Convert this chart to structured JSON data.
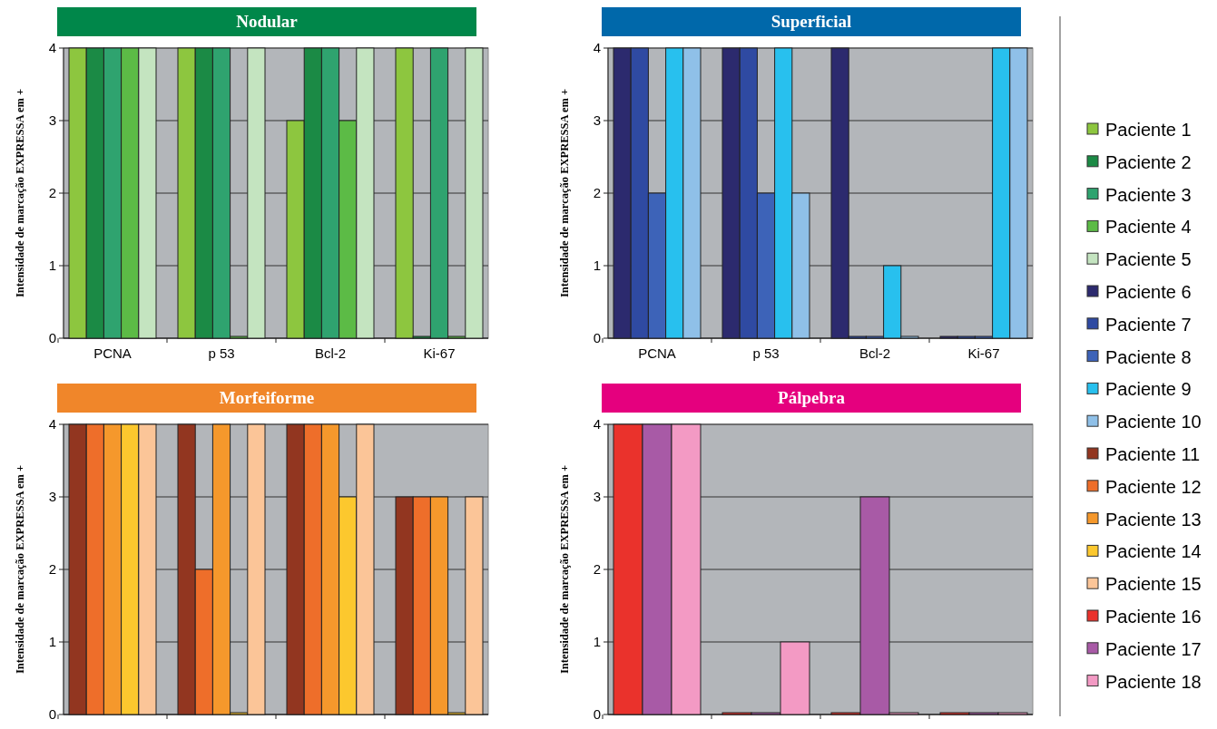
{
  "chart_data": [
    {
      "type": "bar",
      "title": "Nodular",
      "ylabel": "Intensidade de marcação EXPRESSA em +",
      "categories": [
        "PCNA",
        "p 53",
        "Bcl-2",
        "Ki-67"
      ],
      "ylim": [
        0,
        4
      ],
      "yticks": [
        0,
        1,
        2,
        3,
        4
      ],
      "grid": "y",
      "legend": "right",
      "series": [
        {
          "name": "Paciente 1",
          "color": "#8dc63f",
          "values": [
            4,
            4,
            3,
            4
          ]
        },
        {
          "name": "Paciente 2",
          "color": "#1b8a45",
          "values": [
            4,
            4,
            4,
            0
          ]
        },
        {
          "name": "Paciente 3",
          "color": "#2fa36f",
          "values": [
            4,
            4,
            4,
            4
          ]
        },
        {
          "name": "Paciente 4",
          "color": "#5cbb46",
          "values": [
            4,
            0,
            3,
            0
          ]
        },
        {
          "name": "Paciente 5",
          "color": "#c4e4c0",
          "values": [
            4,
            4,
            4,
            4
          ]
        }
      ]
    },
    {
      "type": "bar",
      "title": "Superficial",
      "ylabel": "Intensidade de marcação EXPRESSA em +",
      "categories": [
        "PCNA",
        "p 53",
        "Bcl-2",
        "Ki-67"
      ],
      "ylim": [
        0,
        4
      ],
      "yticks": [
        0,
        1,
        2,
        3,
        4
      ],
      "grid": "y",
      "legend": "right",
      "series": [
        {
          "name": "Paciente 6",
          "color": "#2c2a6e",
          "values": [
            4,
            4,
            4,
            0
          ]
        },
        {
          "name": "Paciente 7",
          "color": "#2f4aa2",
          "values": [
            4,
            4,
            0,
            0
          ]
        },
        {
          "name": "Paciente 8",
          "color": "#3d63b8",
          "values": [
            2,
            2,
            0,
            0
          ]
        },
        {
          "name": "Paciente 9",
          "color": "#28c0ee",
          "values": [
            4,
            4,
            1,
            4
          ]
        },
        {
          "name": "Paciente 10",
          "color": "#8fc0e8",
          "values": [
            4,
            2,
            0,
            4
          ]
        }
      ]
    },
    {
      "type": "bar",
      "title": "Morfeiforme",
      "ylabel": "Intensidade de marcação EXPRESSA em +",
      "categories": [
        null,
        null,
        null,
        null
      ],
      "ylim": [
        0,
        4
      ],
      "yticks": [
        0,
        1,
        2,
        3,
        4
      ],
      "grid": "y",
      "legend": "right",
      "series": [
        {
          "name": "Paciente 11",
          "color": "#923620",
          "values": [
            4,
            4,
            4,
            3
          ]
        },
        {
          "name": "Paciente 12",
          "color": "#ee6e2a",
          "values": [
            4,
            2,
            4,
            3
          ]
        },
        {
          "name": "Paciente 13",
          "color": "#f5982c",
          "values": [
            4,
            4,
            4,
            3
          ]
        },
        {
          "name": "Paciente 14",
          "color": "#fcc82e",
          "values": [
            4,
            0,
            3,
            0
          ]
        },
        {
          "name": "Paciente 15",
          "color": "#fbc598",
          "values": [
            4,
            4,
            4,
            3
          ]
        }
      ]
    },
    {
      "type": "bar",
      "title": "Pálpebra",
      "ylabel": "Intensidade de marcação EXPRESSA em +",
      "categories": [
        null,
        null,
        null,
        null
      ],
      "ylim": [
        0,
        4
      ],
      "yticks": [
        0,
        1,
        2,
        3,
        4
      ],
      "grid": "y",
      "legend": "right",
      "series": [
        {
          "name": "Paciente 16",
          "color": "#ea322c",
          "values": [
            4,
            0,
            0,
            0
          ]
        },
        {
          "name": "Paciente 17",
          "color": "#a85aa6",
          "values": [
            4,
            0,
            3,
            0
          ]
        },
        {
          "name": "Paciente 18",
          "color": "#f39ac4",
          "values": [
            4,
            1,
            0,
            0
          ]
        }
      ]
    }
  ]
}
